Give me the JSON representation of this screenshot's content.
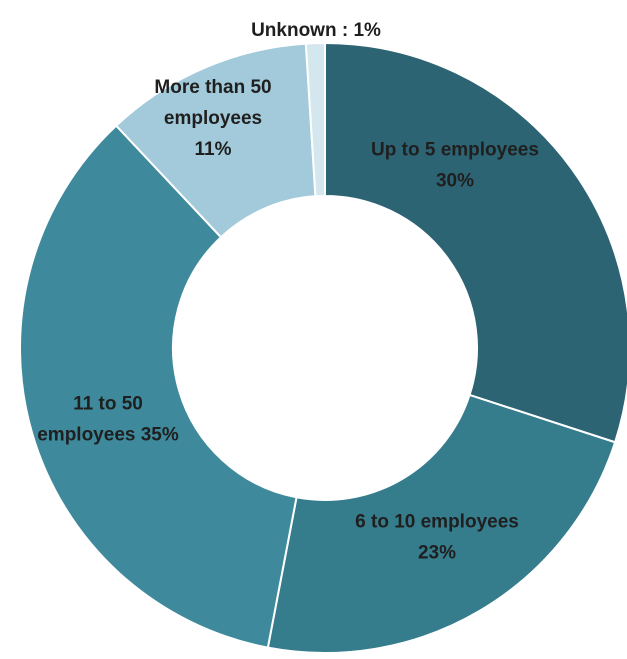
{
  "chart_data": {
    "type": "pie",
    "donut": true,
    "slices": [
      {
        "label_lines": [
          "Up to 5 employees",
          "30%"
        ],
        "value": 30,
        "color": "#2c6474"
      },
      {
        "label_lines": [
          "6 to 10 employees",
          "23%"
        ],
        "value": 23,
        "color": "#357c8c"
      },
      {
        "label_lines": [
          "11 to 50",
          "employees 35%"
        ],
        "value": 35,
        "color": "#3e8a9c"
      },
      {
        "label_lines": [
          "More than 50",
          "employees",
          "11%"
        ],
        "value": 11,
        "color": "#a2cadb"
      },
      {
        "label_lines": [
          "Unknown : 1%"
        ],
        "value": 1,
        "color": "#d4e7ee"
      }
    ]
  }
}
